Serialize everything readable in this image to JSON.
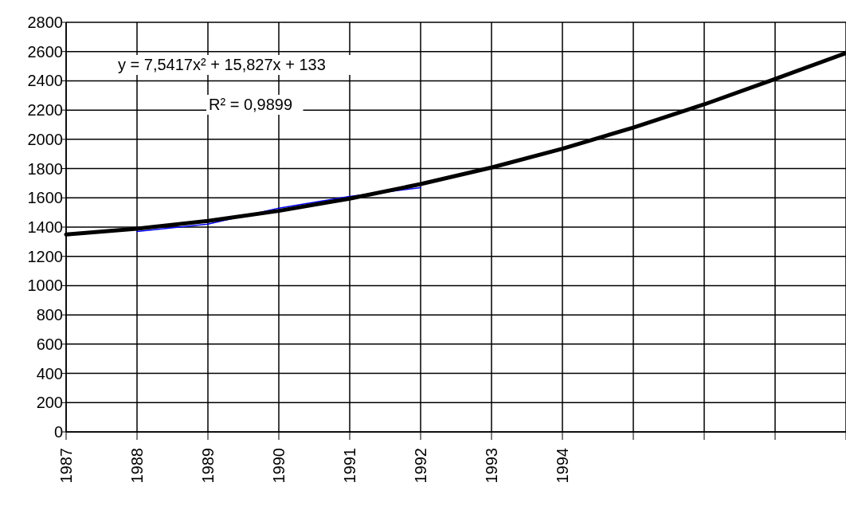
{
  "chart_data": {
    "type": "line",
    "categories": [
      "1987",
      "1988",
      "1989",
      "1990",
      "1991",
      "1992",
      "1993",
      "1994",
      null,
      null,
      null,
      null
    ],
    "series": [
      {
        "color": "#0000ff",
        "values": [
          null,
          1370,
          1420,
          1530,
          1610,
          1670,
          null,
          null,
          null,
          null,
          null,
          null
        ]
      },
      {
        "type": "line",
        "color": "#000000",
        "values": [
          1350,
          1389,
          1442,
          1511,
          1595,
          1694,
          1807,
          1936,
          2080,
          2239,
          2413,
          2590
        ]
      }
    ],
    "ylim": [
      0,
      2800
    ],
    "yticks": [
      0,
      200,
      400,
      600,
      800,
      1000,
      1200,
      1400,
      1600,
      1800,
      2000,
      2200,
      2400,
      2600,
      2800
    ],
    "grid": true,
    "marker": "none",
    "line_style": "solid",
    "annotations": [
      "y = 7,5417x² + 15,827x + 133",
      "R² = 0,9899"
    ]
  }
}
